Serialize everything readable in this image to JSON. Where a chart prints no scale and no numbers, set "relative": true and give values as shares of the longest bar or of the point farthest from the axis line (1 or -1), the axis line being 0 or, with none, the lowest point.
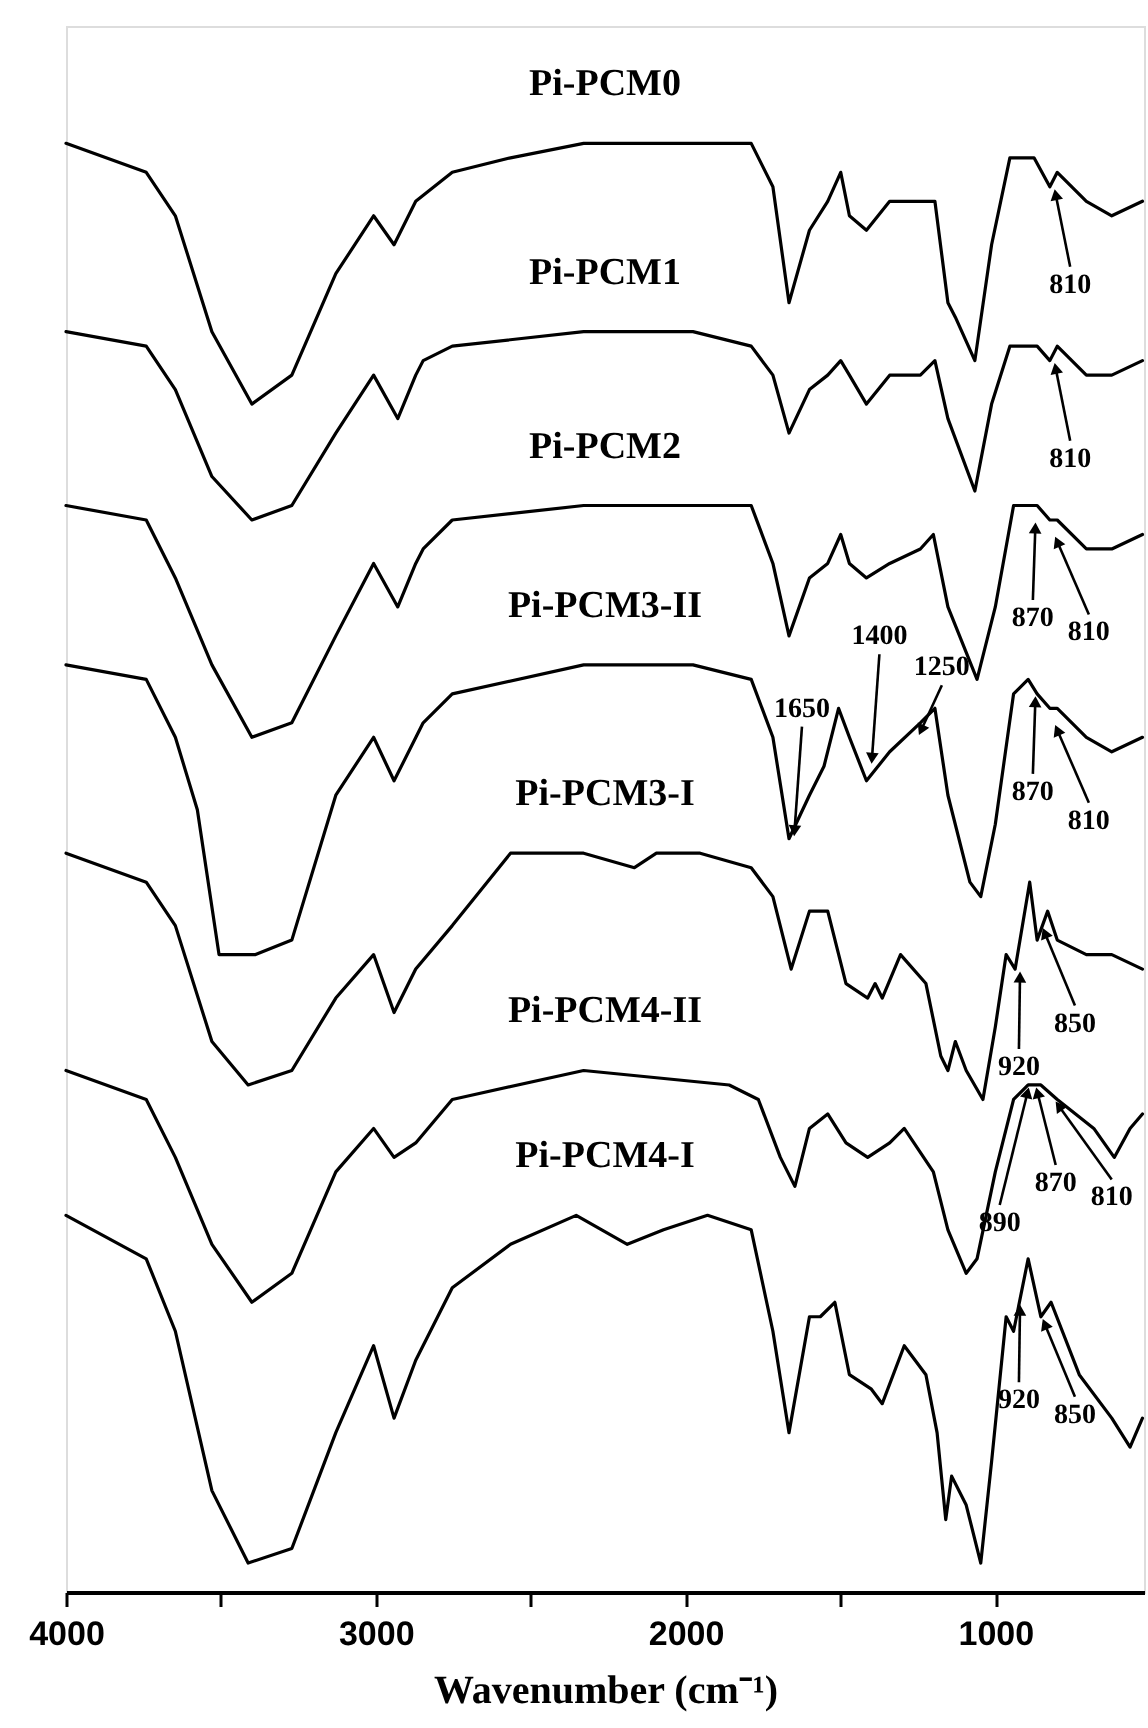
{
  "chart_data": {
    "type": "line",
    "relative": true,
    "xlabel": "Wavenumber (cm⁻¹)",
    "xlim": [
      4000,
      520
    ],
    "xticks": [
      4000,
      {
        "value": 3500,
        "label": null
      },
      3000,
      {
        "value": 2500,
        "label": null
      },
      2000,
      {
        "value": 1500,
        "label": null
      },
      1000
    ],
    "series": [
      {
        "name": "Pi-PCM0",
        "color": "#000000",
        "x": [
          4000,
          3741,
          3647,
          3529,
          3400,
          3271,
          3129,
          3007,
          2941,
          2871,
          2753,
          2565,
          2329,
          1976,
          1788,
          1718,
          1666,
          1600,
          1541,
          1499,
          1471,
          1416,
          1341,
          1242,
          1195,
          1153,
          1129,
          1066,
          1012,
          953,
          918,
          875,
          824,
          800,
          706,
          624,
          525
        ],
        "values": [
          1.0,
          0.98,
          0.95,
          0.87,
          0.82,
          0.84,
          0.91,
          0.95,
          0.93,
          0.96,
          0.98,
          0.99,
          1.0,
          1.0,
          1.0,
          0.97,
          0.89,
          0.94,
          0.96,
          0.98,
          0.95,
          0.94,
          0.96,
          0.96,
          0.96,
          0.89,
          0.88,
          0.85,
          0.93,
          0.99,
          0.99,
          0.99,
          0.97,
          0.98,
          0.96,
          0.95,
          0.96
        ]
      },
      {
        "name": "Pi-PCM1",
        "color": "#000000",
        "x": [
          4000,
          3741,
          3647,
          3529,
          3400,
          3271,
          3129,
          3007,
          2929,
          2871,
          2847,
          2753,
          2329,
          1976,
          1788,
          1718,
          1666,
          1600,
          1541,
          1499,
          1471,
          1416,
          1341,
          1242,
          1195,
          1153,
          1066,
          1012,
          953,
          865,
          824,
          800,
          706,
          624,
          525
        ],
        "values": [
          0.87,
          0.86,
          0.83,
          0.77,
          0.74,
          0.75,
          0.8,
          0.84,
          0.81,
          0.84,
          0.85,
          0.86,
          0.87,
          0.87,
          0.86,
          0.84,
          0.8,
          0.83,
          0.84,
          0.85,
          0.84,
          0.82,
          0.84,
          0.84,
          0.85,
          0.81,
          0.76,
          0.82,
          0.86,
          0.86,
          0.85,
          0.86,
          0.84,
          0.84,
          0.85
        ]
      },
      {
        "name": "Pi-PCM2",
        "color": "#000000",
        "x": [
          4000,
          3741,
          3647,
          3529,
          3400,
          3271,
          3129,
          3007,
          2929,
          2871,
          2847,
          2753,
          2329,
          1976,
          1788,
          1718,
          1666,
          1600,
          1541,
          1499,
          1471,
          1416,
          1341,
          1242,
          1200,
          1153,
          1059,
          1000,
          941,
          906,
          865,
          824,
          800,
          706,
          624,
          525
        ],
        "values": [
          0.75,
          0.74,
          0.7,
          0.64,
          0.59,
          0.6,
          0.66,
          0.71,
          0.68,
          0.71,
          0.72,
          0.74,
          0.75,
          0.75,
          0.75,
          0.71,
          0.66,
          0.7,
          0.71,
          0.73,
          0.71,
          0.7,
          0.71,
          0.72,
          0.73,
          0.68,
          0.63,
          0.68,
          0.75,
          0.75,
          0.75,
          0.74,
          0.74,
          0.72,
          0.72,
          0.73
        ]
      },
      {
        "name": "Pi-PCM3-II",
        "color": "#000000",
        "x": [
          4000,
          3741,
          3647,
          3576,
          3506,
          3388,
          3271,
          3129,
          3007,
          2941,
          2847,
          2753,
          2329,
          1976,
          1788,
          1718,
          1666,
          1600,
          1553,
          1506,
          1471,
          1416,
          1341,
          1242,
          1195,
          1153,
          1082,
          1047,
          1000,
          941,
          894,
          865,
          824,
          800,
          706,
          624,
          525
        ],
        "values": [
          0.64,
          0.63,
          0.59,
          0.54,
          0.44,
          0.44,
          0.45,
          0.55,
          0.59,
          0.56,
          0.6,
          0.62,
          0.64,
          0.64,
          0.63,
          0.59,
          0.52,
          0.55,
          0.57,
          0.61,
          0.59,
          0.56,
          0.58,
          0.6,
          0.61,
          0.55,
          0.49,
          0.48,
          0.53,
          0.62,
          0.63,
          0.62,
          0.61,
          0.61,
          0.59,
          0.58,
          0.59
        ]
      },
      {
        "name": "Pi-PCM3-I",
        "color": "#000000",
        "x": [
          4000,
          3741,
          3647,
          3529,
          3412,
          3271,
          3129,
          3007,
          2941,
          2871,
          2753,
          2565,
          2329,
          2165,
          2094,
          1953,
          1788,
          1718,
          1659,
          1600,
          1541,
          1482,
          1412,
          1388,
          1365,
          1306,
          1224,
          1176,
          1153,
          1129,
          1094,
          1040,
          1000,
          965,
          936,
          889,
          865,
          831,
          800,
          706,
          624,
          525
        ],
        "values": [
          0.51,
          0.49,
          0.46,
          0.38,
          0.35,
          0.36,
          0.41,
          0.44,
          0.4,
          0.43,
          0.46,
          0.51,
          0.51,
          0.5,
          0.51,
          0.51,
          0.5,
          0.48,
          0.43,
          0.47,
          0.47,
          0.42,
          0.41,
          0.42,
          0.41,
          0.44,
          0.42,
          0.37,
          0.36,
          0.38,
          0.36,
          0.34,
          0.39,
          0.44,
          0.43,
          0.49,
          0.45,
          0.47,
          0.45,
          0.44,
          0.44,
          0.43
        ]
      },
      {
        "name": "Pi-PCM4-II",
        "color": "#000000",
        "x": [
          4000,
          3741,
          3647,
          3529,
          3400,
          3271,
          3129,
          3007,
          2941,
          2871,
          2753,
          2329,
          1859,
          1765,
          1694,
          1647,
          1600,
          1541,
          1482,
          1412,
          1341,
          1294,
          1200,
          1153,
          1094,
          1059,
          1000,
          941,
          894,
          853,
          800,
          682,
          616,
          565,
          525
        ],
        "values": [
          0.36,
          0.34,
          0.3,
          0.24,
          0.2,
          0.22,
          0.29,
          0.32,
          0.3,
          0.31,
          0.34,
          0.36,
          0.35,
          0.34,
          0.3,
          0.28,
          0.32,
          0.33,
          0.31,
          0.3,
          0.31,
          0.32,
          0.29,
          0.25,
          0.22,
          0.23,
          0.29,
          0.34,
          0.35,
          0.35,
          0.34,
          0.32,
          0.3,
          0.32,
          0.33
        ]
      },
      {
        "name": "Pi-PCM4-I",
        "color": "#000000",
        "x": [
          4000,
          3741,
          3647,
          3529,
          3412,
          3271,
          3129,
          3007,
          2941,
          2871,
          2753,
          2565,
          2353,
          2188,
          2071,
          1929,
          1788,
          1718,
          1666,
          1600,
          1565,
          1518,
          1471,
          1400,
          1365,
          1294,
          1224,
          1188,
          1160,
          1141,
          1094,
          1047,
          1012,
          965,
          941,
          894,
          853,
          820,
          729,
          624,
          565,
          525
        ],
        "values": [
          0.26,
          0.23,
          0.18,
          0.07,
          0.02,
          0.03,
          0.11,
          0.17,
          0.12,
          0.16,
          0.21,
          0.24,
          0.26,
          0.24,
          0.25,
          0.26,
          0.25,
          0.18,
          0.11,
          0.19,
          0.19,
          0.2,
          0.15,
          0.14,
          0.13,
          0.17,
          0.15,
          0.11,
          0.05,
          0.08,
          0.06,
          0.02,
          0.09,
          0.19,
          0.18,
          0.23,
          0.19,
          0.2,
          0.15,
          0.12,
          0.1,
          0.12
        ]
      }
    ],
    "annotations": [
      {
        "text": "810",
        "x": 810,
        "y": 0.97
      },
      {
        "text": "810",
        "x": 810,
        "y": 0.85
      },
      {
        "text": "870",
        "x": 870,
        "y": 0.74
      },
      {
        "text": "810",
        "x": 810,
        "y": 0.73
      },
      {
        "text": "1650",
        "x": 1650,
        "y": 0.52
      },
      {
        "text": "1400",
        "x": 1400,
        "y": 0.57
      },
      {
        "text": "1250",
        "x": 1250,
        "y": 0.59
      },
      {
        "text": "870",
        "x": 870,
        "y": 0.62
      },
      {
        "text": "810",
        "x": 810,
        "y": 0.6
      },
      {
        "text": "920",
        "x": 920,
        "y": 0.43
      },
      {
        "text": "850",
        "x": 850,
        "y": 0.46
      },
      {
        "text": "890",
        "x": 890,
        "y": 0.35
      },
      {
        "text": "870",
        "x": 870,
        "y": 0.35
      },
      {
        "text": "810",
        "x": 810,
        "y": 0.34
      },
      {
        "text": "920",
        "x": 920,
        "y": 0.2
      },
      {
        "text": "850",
        "x": 850,
        "y": 0.19
      }
    ]
  }
}
